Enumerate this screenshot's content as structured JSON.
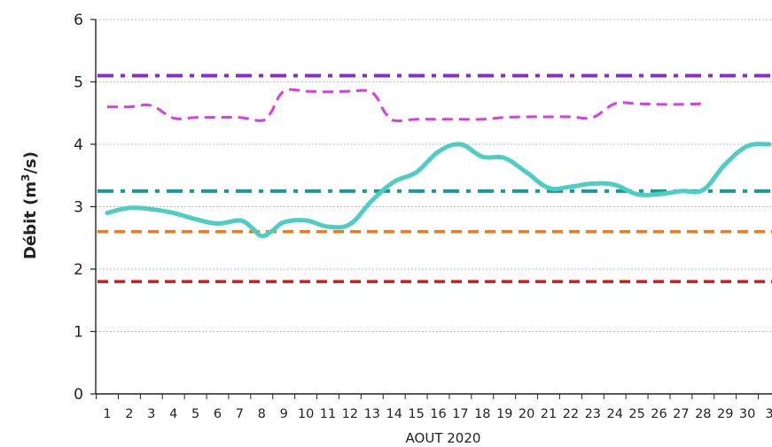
{
  "chart_data": {
    "type": "line",
    "xlabel": "AOUT 2020",
    "ylabel_main": "Débit (m",
    "ylabel_sup": "3",
    "ylabel_end": "/s)",
    "ylim": [
      0,
      6
    ],
    "yticks": [
      0,
      1,
      2,
      3,
      4,
      5,
      6
    ],
    "grid": true,
    "x_categories": [
      "1",
      "2",
      "3",
      "4",
      "5",
      "6",
      "7",
      "8",
      "9",
      "10",
      "11",
      "12",
      "13",
      "14",
      "15",
      "16",
      "17",
      "18",
      "19",
      "20",
      "21",
      "22",
      "23",
      "24",
      "25",
      "26",
      "27",
      "28",
      "29",
      "30",
      "3"
    ],
    "series": [
      {
        "style": "solid",
        "color": "#4ECDC4",
        "width": 5,
        "x": [
          1,
          2,
          3,
          4,
          5,
          6,
          7,
          7.5,
          8,
          8.5,
          9,
          10,
          11,
          12,
          13,
          14,
          15,
          16,
          17,
          18,
          19,
          20,
          21,
          22,
          23,
          24,
          25,
          26,
          27,
          28,
          29,
          30,
          31
        ],
        "values": [
          2.9,
          2.98,
          2.96,
          2.9,
          2.8,
          2.73,
          2.78,
          2.68,
          2.53,
          2.62,
          2.75,
          2.78,
          2.68,
          2.72,
          3.1,
          3.4,
          3.55,
          3.88,
          4.0,
          3.8,
          3.78,
          3.55,
          3.3,
          3.32,
          3.37,
          3.35,
          3.2,
          3.2,
          3.25,
          3.27,
          3.68,
          3.97,
          4.0
        ]
      },
      {
        "style": "dashed",
        "color": "#D63FE0",
        "width": 3,
        "x": [
          1,
          2,
          3,
          4,
          5,
          6,
          7,
          8,
          8.4,
          9,
          10,
          11,
          12,
          13,
          13.6,
          14,
          15,
          16,
          17,
          18,
          19,
          20,
          21,
          22,
          23,
          24,
          25,
          26,
          27,
          28
        ],
        "values": [
          4.6,
          4.6,
          4.62,
          4.42,
          4.43,
          4.43,
          4.43,
          4.38,
          4.5,
          4.85,
          4.85,
          4.84,
          4.85,
          4.83,
          4.5,
          4.38,
          4.4,
          4.4,
          4.4,
          4.4,
          4.43,
          4.44,
          4.44,
          4.44,
          4.43,
          4.65,
          4.65,
          4.64,
          4.64,
          4.65
        ]
      },
      {
        "style": "dashdot",
        "color": "#8A2BD0",
        "width": 4,
        "constant": 5.1
      },
      {
        "style": "dashdot",
        "color": "#1A9A94",
        "width": 4,
        "constant": 3.25
      },
      {
        "style": "dashed",
        "color": "#F07A1A",
        "width": 3.5,
        "constant": 2.6
      },
      {
        "style": "dashed",
        "color": "#CC1E1E",
        "width": 3.5,
        "constant": 1.8
      }
    ]
  }
}
